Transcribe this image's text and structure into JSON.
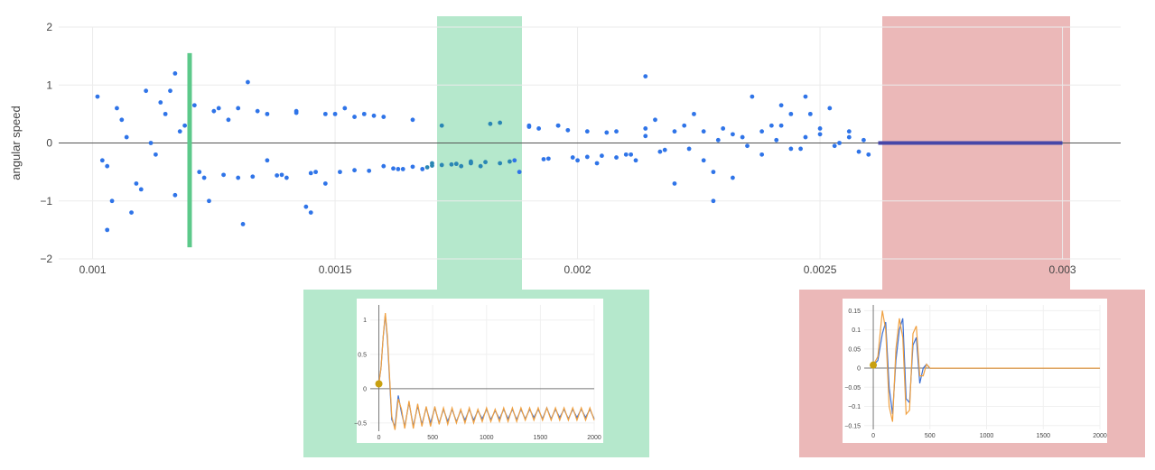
{
  "colors": {
    "points": "#2f74e8",
    "points_in_green": "#2a86b4",
    "flat_line": "#4646a8",
    "green_band": "#b5e8cc",
    "red_band": "#ebb8b8",
    "marker_line": "#5cc98a",
    "inset_blue": "#3b6fd4",
    "inset_orange": "#f0a040",
    "inset_marker": "#c8a010"
  },
  "chart_data": [
    {
      "type": "scatter",
      "title": "",
      "xlabel": "",
      "ylabel": "angular speed",
      "xlim": [
        0.00093,
        0.00312
      ],
      "ylim": [
        -2,
        2
      ],
      "xticks": [
        0.001,
        0.0015,
        0.002,
        0.0025,
        0.003
      ],
      "xtick_labels": [
        "0.001",
        "0.0015",
        "0.002",
        "0.0025",
        "0.003"
      ],
      "yticks": [
        -2,
        -1,
        0,
        1,
        2
      ],
      "ytick_labels": [
        "−2",
        "−1",
        "0",
        "1",
        "2"
      ],
      "grid": true,
      "legend": "none",
      "highlight_green": [
        0.00169,
        0.00186
      ],
      "highlight_red": [
        0.00262,
        0.00301
      ],
      "marker_line_x": 0.0012,
      "marker_line_y": [
        -1.8,
        1.55
      ],
      "flat_segment": {
        "x": [
          0.00262,
          0.003
        ],
        "y": 0
      },
      "series": [
        {
          "points_x": [
            0.00101,
            0.00103,
            0.00105,
            0.00107,
            0.00109,
            0.00111,
            0.00113,
            0.00115,
            0.00117,
            0.00119,
            0.00121,
            0.00123,
            0.00125,
            0.00127,
            0.0013,
            0.00133,
            0.00136,
            0.00139,
            0.00142,
            0.00145,
            0.00148,
            0.00151,
            0.00154,
            0.00157,
            0.0016,
            0.00163,
            0.00166,
            0.00169,
            0.00172,
            0.00175,
            0.00178,
            0.00181,
            0.00184,
            0.00187,
            0.0019,
            0.00193,
            0.00196,
            0.00199,
            0.00202,
            0.00205,
            0.00208,
            0.00211,
            0.00214,
            0.00217,
            0.0022,
            0.00223,
            0.00226,
            0.00229,
            0.00232,
            0.00235,
            0.00238,
            0.00241,
            0.00244,
            0.00247,
            0.0025,
            0.00253,
            0.00256,
            0.00259,
            0.00102,
            0.00106,
            0.0011,
            0.00114,
            0.00118,
            0.00122,
            0.00126,
            0.0013,
            0.00134,
            0.00138,
            0.00142,
            0.00146,
            0.0015,
            0.00154,
            0.00158,
            0.00162,
            0.00166,
            0.0017,
            0.00174,
            0.00178,
            0.00182,
            0.00186,
            0.0019,
            0.00194,
            0.00198,
            0.00202,
            0.00206,
            0.0021,
            0.00214,
            0.00218,
            0.00222,
            0.00226,
            0.0023,
            0.00234,
            0.00238,
            0.00242,
            0.00246,
            0.0025,
            0.00254,
            0.00258,
            0.00104,
            0.00112,
            0.0012,
            0.00128,
            0.00136,
            0.00144,
            0.00152,
            0.0016,
            0.00168,
            0.00176,
            0.00184,
            0.00192,
            0.002,
            0.00208,
            0.00216,
            0.00224,
            0.00232,
            0.0024,
            0.00248,
            0.00256,
            0.00108,
            0.00116,
            0.00124,
            0.00132,
            0.0014,
            0.00148,
            0.00156,
            0.00164,
            0.00172,
            0.0018,
            0.00188,
            0.00196,
            0.00204,
            0.00212,
            0.0022,
            0.00228,
            0.00236,
            0.00244,
            0.00252,
            0.0026,
            0.00214,
            0.00228,
            0.00242,
            0.00117,
            0.00131,
            0.00103,
            0.00145,
            0.00247,
            0.0017,
            0.00178
          ],
          "points_y": [
            0.8,
            -0.4,
            0.6,
            0.1,
            -0.7,
            0.9,
            -0.2,
            0.5,
            -0.9,
            0.3,
            0.65,
            -0.6,
            0.55,
            -0.55,
            0.6,
            -0.58,
            0.5,
            -0.55,
            0.55,
            -0.52,
            0.5,
            -0.5,
            0.45,
            -0.48,
            0.45,
            -0.45,
            0.4,
            -0.42,
            -0.38,
            -0.36,
            -0.34,
            -0.33,
            0.35,
            -0.3,
            0.3,
            -0.28,
            0.3,
            -0.25,
            0.2,
            -0.22,
            0.2,
            -0.2,
            0.25,
            -0.15,
            0.2,
            -0.1,
            0.2,
            0.05,
            0.15,
            -0.05,
            0.2,
            0.05,
            -0.1,
            0.1,
            0.15,
            -0.05,
            0.1,
            0.05,
            -0.3,
            0.4,
            -0.8,
            0.7,
            0.2,
            -0.5,
            0.6,
            -0.6,
            0.55,
            -0.56,
            0.52,
            -0.5,
            0.5,
            -0.47,
            0.47,
            -0.44,
            -0.41,
            -0.39,
            -0.37,
            -0.35,
            0.33,
            -0.32,
            0.28,
            -0.27,
            0.22,
            -0.24,
            0.18,
            -0.2,
            0.12,
            -0.12,
            0.3,
            -0.3,
            0.25,
            0.1,
            -0.2,
            0.3,
            -0.1,
            0.25,
            0.0,
            -0.15,
            -1.0,
            0.0,
            0.2,
            0.4,
            -0.3,
            -1.1,
            0.6,
            -0.4,
            -0.45,
            -0.4,
            -0.35,
            0.25,
            -0.3,
            -0.25,
            0.4,
            0.5,
            -0.6,
            0.3,
            0.5,
            0.2,
            -1.2,
            0.9,
            -1.0,
            1.05,
            -0.6,
            -0.7,
            0.5,
            -0.45,
            0.3,
            -0.4,
            -0.5,
            0.3,
            -0.35,
            -0.3,
            -0.7,
            -0.5,
            0.8,
            0.5,
            0.6,
            -0.2,
            1.15,
            -1.0,
            0.65,
            1.2,
            -1.4,
            -1.5,
            -1.2,
            0.8,
            -0.35,
            -0.32
          ]
        }
      ]
    },
    {
      "type": "line",
      "title": "",
      "xlim": [
        -80,
        2000
      ],
      "ylim": [
        -0.62,
        1.22
      ],
      "xticks": [
        0,
        500,
        1000,
        1500,
        2000
      ],
      "xtick_labels": [
        "0",
        "500",
        "1000",
        "1500",
        "2000"
      ],
      "yticks": [
        1,
        0.5,
        0,
        -0.5
      ],
      "ytick_labels": [
        "1",
        "0.5",
        "0",
        "−0.5"
      ],
      "grid": true,
      "legend": "none",
      "marker_point": [
        0,
        0.07
      ],
      "series": [
        {
          "x": [
            0,
            20,
            40,
            60,
            80,
            100,
            120,
            150,
            180,
            210,
            240,
            280,
            320,
            360,
            400,
            440,
            480,
            520,
            560,
            600,
            640,
            680,
            720,
            760,
            800,
            840,
            880,
            920,
            960,
            1000,
            1040,
            1080,
            1120,
            1160,
            1200,
            1240,
            1280,
            1320,
            1360,
            1400,
            1440,
            1480,
            1520,
            1560,
            1600,
            1640,
            1680,
            1720,
            1760,
            1800,
            1840,
            1880,
            1920,
            1960,
            2000
          ],
          "y": [
            0.07,
            0.3,
            0.75,
            1.08,
            0.7,
            0.1,
            -0.45,
            -0.55,
            -0.1,
            -0.35,
            -0.55,
            -0.2,
            -0.55,
            -0.25,
            -0.52,
            -0.28,
            -0.5,
            -0.28,
            -0.5,
            -0.3,
            -0.48,
            -0.3,
            -0.48,
            -0.32,
            -0.46,
            -0.3,
            -0.46,
            -0.32,
            -0.44,
            -0.3,
            -0.45,
            -0.32,
            -0.44,
            -0.3,
            -0.44,
            -0.3,
            -0.45,
            -0.3,
            -0.44,
            -0.3,
            -0.42,
            -0.3,
            -0.44,
            -0.28,
            -0.44,
            -0.3,
            -0.42,
            -0.3,
            -0.44,
            -0.3,
            -0.42,
            -0.3,
            -0.42,
            -0.3,
            -0.44
          ]
        },
        {
          "x": [
            0,
            20,
            40,
            60,
            80,
            100,
            120,
            150,
            180,
            210,
            240,
            280,
            320,
            360,
            400,
            440,
            480,
            520,
            560,
            600,
            640,
            680,
            720,
            760,
            800,
            840,
            880,
            920,
            960,
            1000,
            1040,
            1080,
            1120,
            1160,
            1200,
            1240,
            1280,
            1320,
            1360,
            1400,
            1440,
            1480,
            1520,
            1560,
            1600,
            1640,
            1680,
            1720,
            1760,
            1800,
            1840,
            1880,
            1920,
            1960,
            2000
          ],
          "y": [
            0.07,
            0.3,
            0.75,
            1.1,
            0.75,
            0.15,
            -0.4,
            -0.6,
            -0.15,
            -0.3,
            -0.58,
            -0.18,
            -0.58,
            -0.22,
            -0.55,
            -0.26,
            -0.55,
            -0.26,
            -0.52,
            -0.28,
            -0.52,
            -0.28,
            -0.5,
            -0.3,
            -0.5,
            -0.28,
            -0.5,
            -0.3,
            -0.48,
            -0.28,
            -0.48,
            -0.3,
            -0.48,
            -0.28,
            -0.48,
            -0.28,
            -0.48,
            -0.28,
            -0.46,
            -0.28,
            -0.46,
            -0.28,
            -0.46,
            -0.28,
            -0.46,
            -0.28,
            -0.46,
            -0.28,
            -0.46,
            -0.28,
            -0.46,
            -0.28,
            -0.46,
            -0.28,
            -0.46
          ]
        }
      ]
    },
    {
      "type": "line",
      "title": "",
      "xlim": [
        -80,
        2000
      ],
      "ylim": [
        -0.16,
        0.165
      ],
      "xticks": [
        0,
        500,
        1000,
        1500,
        2000
      ],
      "xtick_labels": [
        "0",
        "500",
        "1000",
        "1500",
        "2000"
      ],
      "yticks": [
        0.15,
        0.1,
        0.05,
        0,
        -0.05,
        -0.1,
        -0.15
      ],
      "ytick_labels": [
        "0.15",
        "0.1",
        "0.05",
        "0",
        "−0.05",
        "−0.1",
        "−0.15"
      ],
      "grid": true,
      "legend": "none",
      "marker_point": [
        0,
        0.008
      ],
      "series": [
        {
          "x": [
            0,
            40,
            80,
            110,
            140,
            170,
            200,
            230,
            260,
            290,
            320,
            350,
            380,
            410,
            440,
            470,
            500,
            550,
            600,
            800,
            1000,
            1500,
            2000
          ],
          "y": [
            0.008,
            0.02,
            0.09,
            0.12,
            -0.05,
            -0.12,
            0.02,
            0.1,
            0.13,
            -0.08,
            -0.09,
            0.06,
            0.08,
            -0.04,
            0.0,
            0.01,
            0.0,
            0.0,
            0.0,
            0.0,
            0.0,
            0.0,
            0.0
          ]
        },
        {
          "x": [
            0,
            40,
            80,
            110,
            140,
            170,
            200,
            230,
            260,
            290,
            320,
            350,
            380,
            410,
            440,
            470,
            500,
            550,
            600,
            800,
            1000,
            1500,
            2000
          ],
          "y": [
            0.008,
            0.03,
            0.15,
            0.1,
            -0.1,
            -0.14,
            0.05,
            0.13,
            0.08,
            -0.12,
            -0.11,
            0.09,
            0.11,
            -0.02,
            -0.02,
            0.01,
            0.0,
            0.0,
            0.0,
            0.0,
            0.0,
            0.0,
            0.0
          ]
        }
      ]
    }
  ]
}
